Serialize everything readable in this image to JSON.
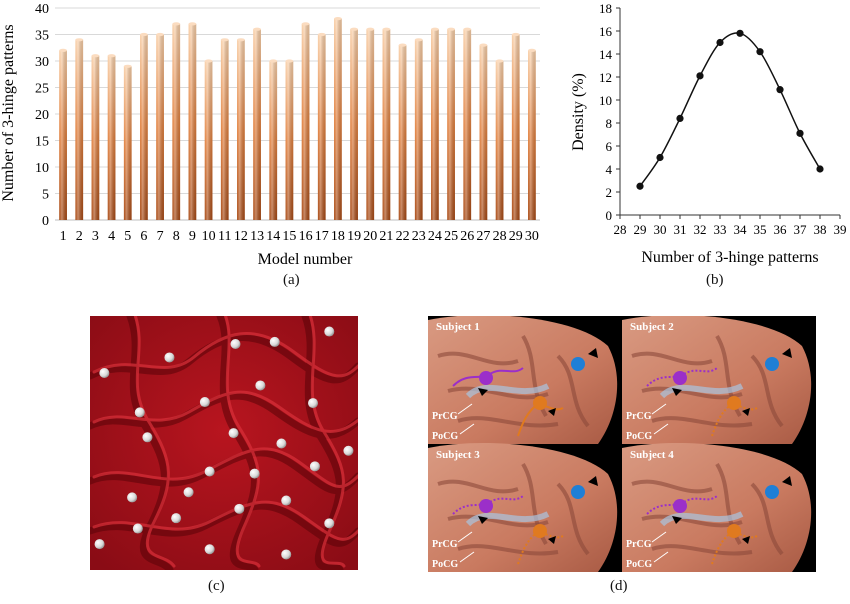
{
  "panels": {
    "a": {
      "caption": "(a)"
    },
    "b": {
      "caption": "(b)"
    },
    "c": {
      "caption": "(c)"
    },
    "d": {
      "caption": "(d)",
      "subjects": [
        "Subject 1",
        "Subject 2",
        "Subject 3",
        "Subject 4"
      ],
      "region_labels": {
        "prcg": "PrCG",
        "pocg": "PoCG"
      }
    }
  },
  "colors": {
    "bar_light": "#f6c49b",
    "bar_dark": "#b5541d",
    "surface": "#a8121b",
    "purple": "#9b2fc9",
    "orange": "#e07a1f",
    "blue": "#1f7fd6"
  },
  "chart_data": [
    {
      "type": "bar",
      "categories": [
        "1",
        "2",
        "3",
        "4",
        "5",
        "6",
        "7",
        "8",
        "9",
        "10",
        "11",
        "12",
        "13",
        "14",
        "15",
        "16",
        "17",
        "18",
        "19",
        "20",
        "21",
        "22",
        "23",
        "24",
        "25",
        "26",
        "27",
        "28",
        "29",
        "30"
      ],
      "values": [
        32,
        34,
        31,
        31,
        29,
        35,
        35,
        37,
        37,
        30,
        34,
        34,
        36,
        30,
        30,
        37,
        35,
        38,
        36,
        36,
        36,
        33,
        34,
        36,
        36,
        36,
        33,
        30,
        35,
        32
      ],
      "title": "",
      "xlabel": "Model number",
      "ylabel": "Number of 3-hinge patterns",
      "ylim": [
        0,
        40
      ],
      "yticks": [
        0,
        5,
        10,
        15,
        20,
        25,
        30,
        35,
        40
      ],
      "grid": true
    },
    {
      "type": "line",
      "x": [
        29,
        30,
        31,
        32,
        33,
        34,
        35,
        36,
        37,
        38
      ],
      "values": [
        2.5,
        5.0,
        8.4,
        12.1,
        15.0,
        15.8,
        14.2,
        10.9,
        7.1,
        4.0
      ],
      "title": "",
      "xlabel": "Number of 3-hinge patterns",
      "ylabel": "Density (%)",
      "xlim": [
        28,
        39
      ],
      "ylim": [
        0,
        18
      ],
      "xticks": [
        28,
        29,
        30,
        31,
        32,
        33,
        34,
        35,
        36,
        37,
        38,
        39
      ],
      "yticks": [
        0,
        2,
        4,
        6,
        8,
        10,
        12,
        14,
        16,
        18
      ],
      "grid": false,
      "markers": true
    }
  ]
}
